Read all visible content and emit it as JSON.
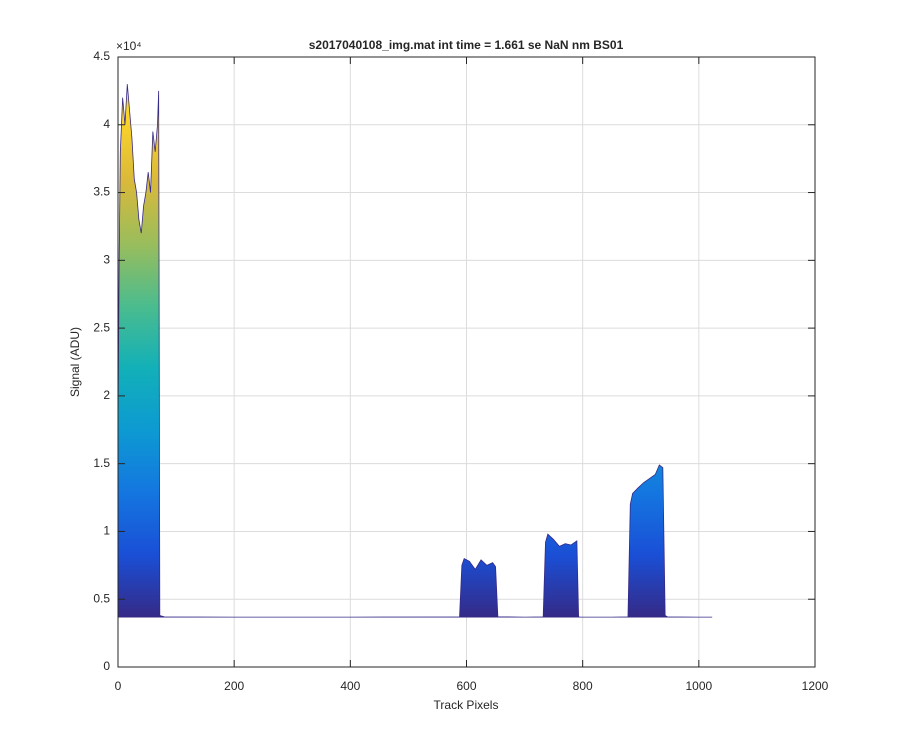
{
  "chart_data": {
    "type": "area",
    "title": "s2017040108_img.mat int time = 1.661 se  NaN nm BS01",
    "x_label": "Track Pixels",
    "y_label": "Signal (ADU)",
    "y_exponent": "×10⁴",
    "x": [
      0,
      2,
      4,
      8,
      12,
      16,
      20,
      24,
      28,
      32,
      36,
      40,
      44,
      48,
      52,
      56,
      60,
      64,
      68,
      70,
      72,
      80,
      200,
      400,
      588,
      592,
      596,
      605,
      615,
      625,
      635,
      645,
      650,
      654,
      700,
      732,
      736,
      740,
      750,
      760,
      770,
      780,
      790,
      793,
      797,
      850,
      878,
      882,
      886,
      895,
      905,
      915,
      925,
      932,
      938,
      942,
      946,
      1000,
      1023
    ],
    "values": [
      18000,
      30000,
      38000,
      42000,
      40000,
      43000,
      41000,
      39000,
      36000,
      35000,
      33000,
      32000,
      34000,
      35000,
      36500,
      35000,
      39500,
      38000,
      40000,
      42500,
      3800,
      3700,
      3680,
      3680,
      3700,
      7500,
      8000,
      7800,
      7200,
      7900,
      7500,
      7700,
      7400,
      3700,
      3680,
      3700,
      9200,
      9800,
      9400,
      8900,
      9100,
      9000,
      9300,
      3700,
      3680,
      3680,
      3700,
      12000,
      12800,
      13200,
      13600,
      13900,
      14200,
      14900,
      14700,
      3800,
      3700,
      3680,
      3680
    ],
    "colormap": [
      "#352a87",
      "#1a4fd6",
      "#1476e0",
      "#0d9ad2",
      "#12b0b8",
      "#4bbc8e",
      "#9abd5c",
      "#d9b93a",
      "#fbd32a",
      "#f9fb0e"
    ],
    "xlim": [
      0,
      1200
    ],
    "xticks": [
      0,
      200,
      400,
      600,
      800,
      1000,
      1200
    ],
    "ylim": [
      0,
      45000
    ],
    "yticks": [
      0,
      {
        "value": 5000,
        "label": "0.5"
      },
      {
        "value": 10000,
        "label": "1"
      },
      {
        "value": 15000,
        "label": "1.5"
      },
      {
        "value": 20000,
        "label": "2"
      },
      {
        "value": 25000,
        "label": "2.5"
      },
      {
        "value": 30000,
        "label": "3"
      },
      {
        "value": 35000,
        "label": "3.5"
      },
      {
        "value": 40000,
        "label": "4"
      },
      {
        "value": 45000,
        "label": "4.5"
      }
    ],
    "grid": true
  }
}
